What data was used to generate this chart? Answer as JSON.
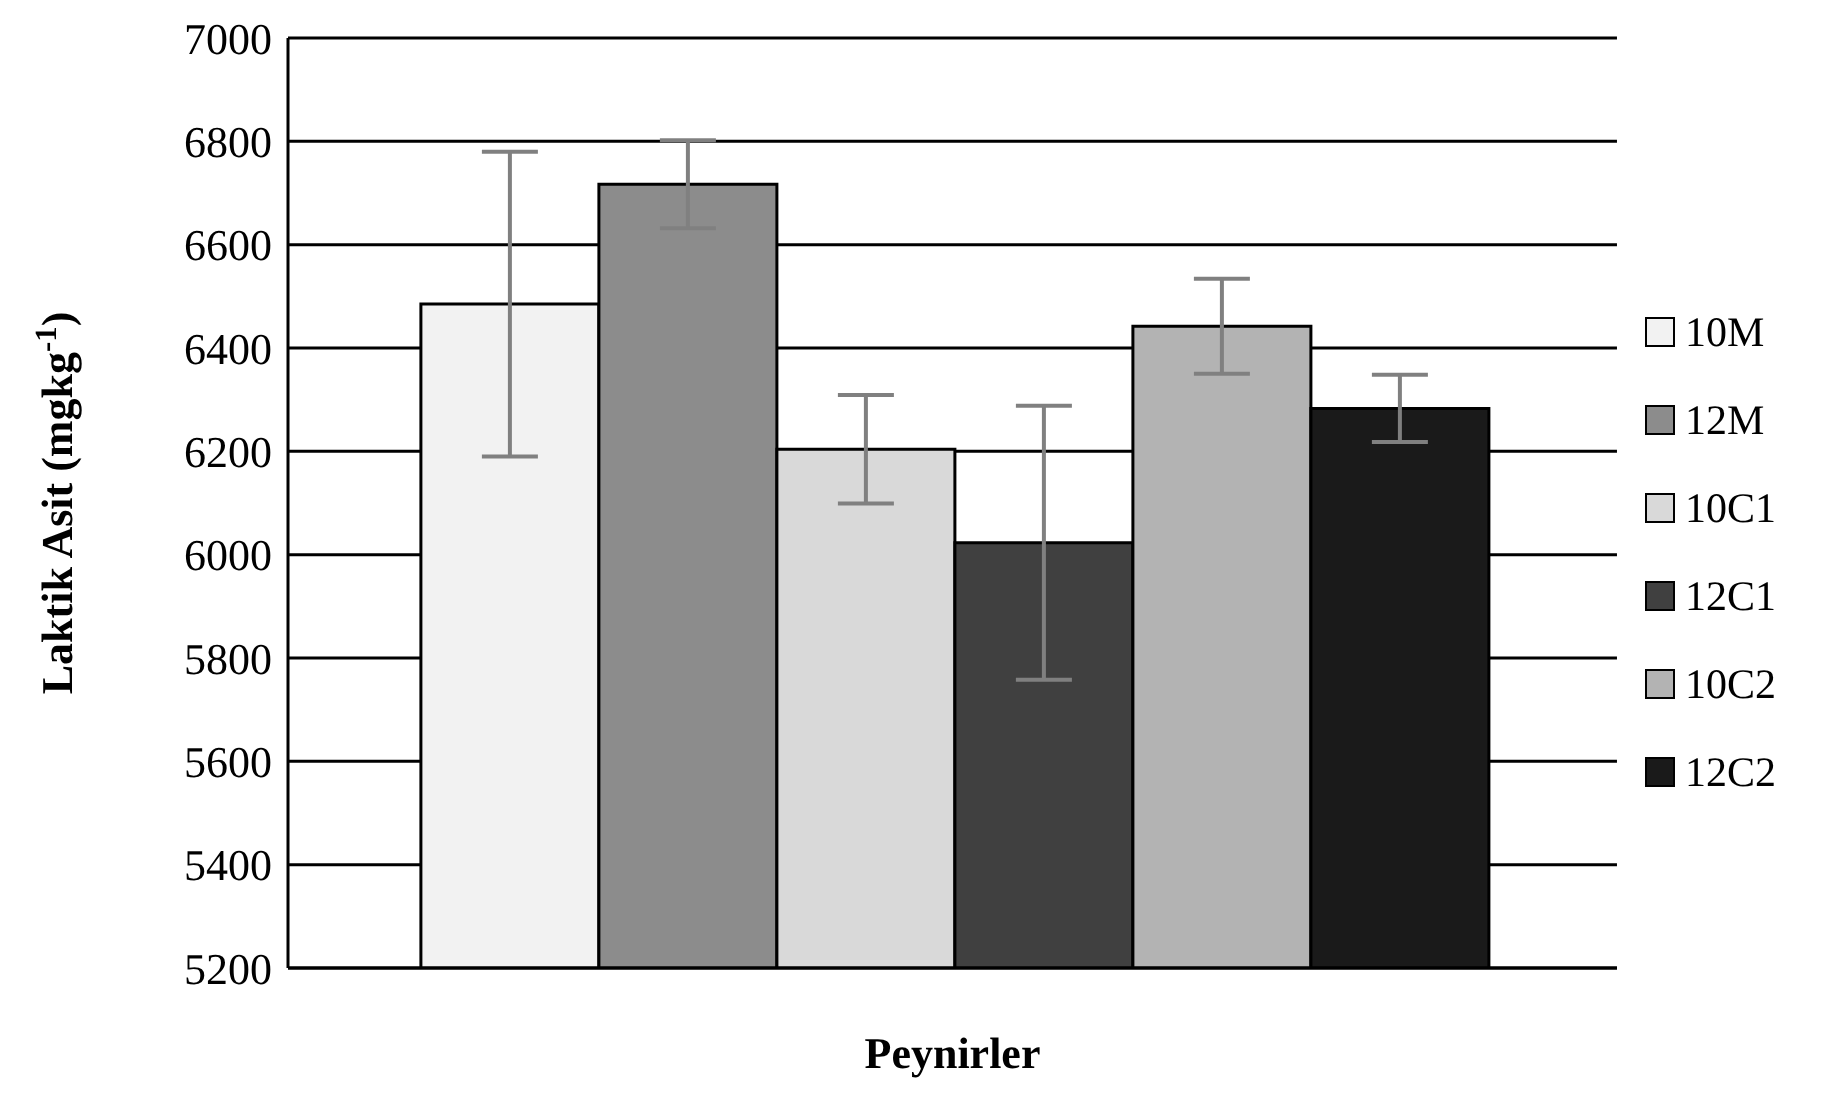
{
  "chart_data": {
    "type": "bar",
    "xlabel": "Peynirler",
    "ylabel": "Laktik Asit (mgkg$^{-1}$)",
    "categories": [
      null
    ],
    "series": [
      {
        "name": "10M",
        "color": "#f2f2f2",
        "values": [
          6485
        ],
        "errors": [
          295
        ]
      },
      {
        "name": "12M",
        "color": "#8c8c8c",
        "values": [
          6717
        ],
        "errors": [
          85
        ]
      },
      {
        "name": "10C1",
        "color": "#d9d9d9",
        "values": [
          6204
        ],
        "errors": [
          105
        ]
      },
      {
        "name": "12C1",
        "color": "#404040",
        "values": [
          6023
        ],
        "errors": [
          265
        ]
      },
      {
        "name": "10C2",
        "color": "#b3b3b3",
        "values": [
          6442
        ],
        "errors": [
          92
        ]
      },
      {
        "name": "12C2",
        "color": "#1a1a1a",
        "values": [
          6283
        ],
        "errors": [
          65
        ]
      }
    ],
    "ylim": [
      5200,
      7000
    ],
    "yticks": [
      5200,
      5400,
      5600,
      5800,
      6000,
      6200,
      6400,
      6600,
      6800,
      7000
    ],
    "grid": "y",
    "legend": "right"
  }
}
